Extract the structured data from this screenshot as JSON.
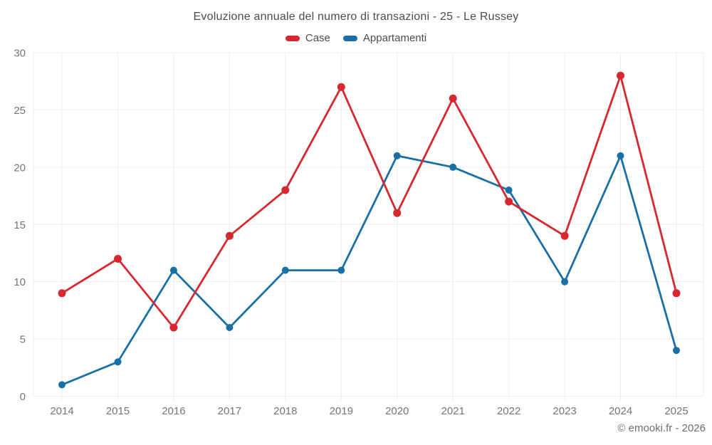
{
  "header": {
    "title": "Evoluzione annuale del numero di transazioni - 25 - Le Russey"
  },
  "footer": {
    "credit": "© emooki.fr - 2026"
  },
  "colors": {
    "case_red": "#d7282f",
    "appartamenti_blue": "#1a70a4",
    "grid": "#ececec",
    "tick_label": "#767676",
    "title_text": "#4c4c4c",
    "footer_text": "#6e6e6e"
  },
  "chart_data": {
    "type": "line",
    "title": "Evoluzione annuale del numero di transazioni - 25 - Le Russey",
    "categories": [
      "2014",
      "2015",
      "2016",
      "2017",
      "2018",
      "2019",
      "2020",
      "2021",
      "2022",
      "2023",
      "2024",
      "2025"
    ],
    "series": [
      {
        "name": "Case",
        "color": "#d7282f",
        "values": [
          9,
          12,
          6,
          14,
          18,
          27,
          16,
          26,
          17,
          14,
          28,
          9
        ]
      },
      {
        "name": "Appartamenti",
        "color": "#1a70a4",
        "values": [
          1,
          3,
          11,
          6,
          11,
          11,
          21,
          20,
          18,
          10,
          21,
          4
        ]
      }
    ],
    "xlabel": "",
    "ylabel": "",
    "ylim": [
      0,
      30
    ],
    "ytick_step": 5,
    "grid": true,
    "legend_position": "top"
  }
}
